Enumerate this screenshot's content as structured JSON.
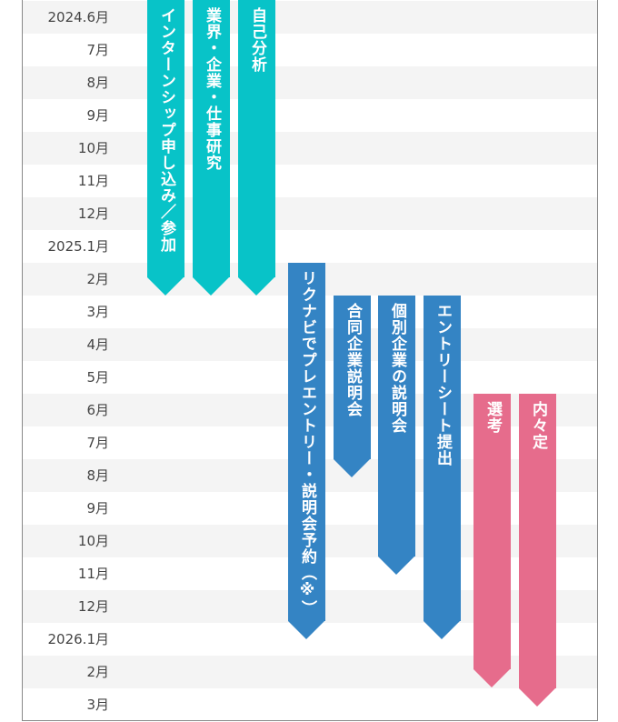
{
  "months": [
    "2024.6月",
    "7月",
    "8月",
    "9月",
    "10月",
    "11月",
    "12月",
    "2025.1月",
    "2月",
    "3月",
    "4月",
    "5月",
    "6月",
    "7月",
    "8月",
    "9月",
    "10月",
    "11月",
    "12月",
    "2026.1月",
    "2月",
    "3月"
  ],
  "colors": {
    "teal": "#08c3c8",
    "blue": "#3484c4",
    "pink": "#e66c8c",
    "shade": "#f4f4f4"
  },
  "bars": [
    {
      "label": "インターンシップ申し込み／参加",
      "color": "teal",
      "start": "2024.6月",
      "end": "2025.2月"
    },
    {
      "label": "業界・企業・仕事研究",
      "color": "teal",
      "start": "2024.6月",
      "end": "2025.2月"
    },
    {
      "label": "自己分析",
      "color": "teal",
      "start": "2024.6月",
      "end": "2025.2月"
    },
    {
      "label": "リクナビでプレエントリー・説明会予約（※）",
      "color": "blue",
      "start": "2025.2月",
      "end": "12月"
    },
    {
      "label": "合同企業説明会",
      "color": "blue",
      "start": "3月",
      "end": "7月"
    },
    {
      "label": "個別企業の説明会",
      "color": "blue",
      "start": "3月",
      "end": "10月"
    },
    {
      "label": "エントリーシート提出",
      "color": "blue",
      "start": "3月",
      "end": "12月"
    },
    {
      "label": "選考",
      "color": "pink",
      "start": "6月",
      "end": "2026.1月"
    },
    {
      "label": "内々定",
      "color": "pink",
      "start": "6月",
      "end": "2026.2月"
    }
  ]
}
